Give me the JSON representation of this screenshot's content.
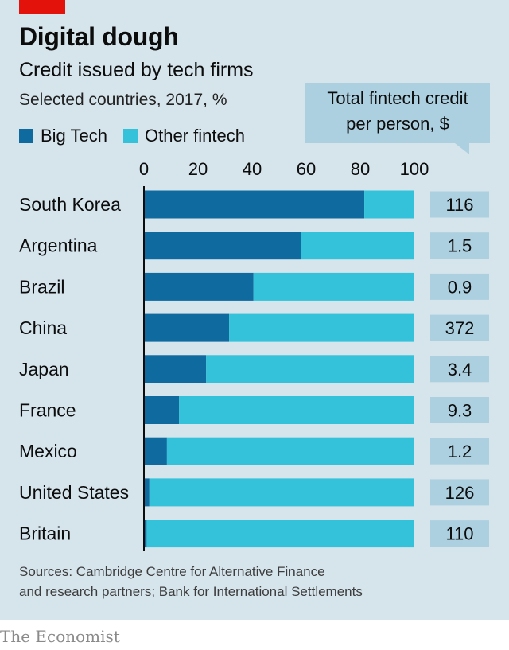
{
  "header": {
    "title": "Digital dough",
    "subtitle": "Credit issued by tech firms",
    "note": "Selected countries, 2017, %",
    "callout_line1": "Total fintech credit",
    "callout_line2": "per person, $"
  },
  "legend": {
    "big_tech": "Big Tech",
    "other_fintech": "Other fintech"
  },
  "colors": {
    "big_tech": "#0f6aa0",
    "other_fintech": "#33c2d9",
    "value_box": "#add0e0",
    "axis": "#0c0c0c",
    "brand_red": "#e3120b"
  },
  "chart_data": {
    "type": "bar",
    "orientation": "horizontal",
    "stacked": true,
    "xlim": [
      0,
      100
    ],
    "xticks": [
      0,
      20,
      40,
      60,
      80,
      100
    ],
    "categories": [
      "South Korea",
      "Argentina",
      "Brazil",
      "China",
      "Japan",
      "France",
      "Mexico",
      "United States",
      "Britain"
    ],
    "series": [
      {
        "name": "Big Tech",
        "values": [
          81.5,
          58,
          40.5,
          31.5,
          23,
          13,
          8.5,
          2,
          1
        ]
      },
      {
        "name": "Other fintech",
        "values": [
          18.5,
          42,
          59.5,
          68.5,
          77,
          87,
          91.5,
          98,
          99
        ]
      }
    ],
    "per_person_usd": [
      "116",
      "1.5",
      "0.9",
      "372",
      "3.4",
      "9.3",
      "1.2",
      "126",
      "110"
    ],
    "legend_position": "top-left",
    "grid": false
  },
  "footer": {
    "source_line1": "Sources: Cambridge Centre for Alternative Finance",
    "source_line2": "and research partners; Bank for International Settlements",
    "brand": "The Economist"
  }
}
